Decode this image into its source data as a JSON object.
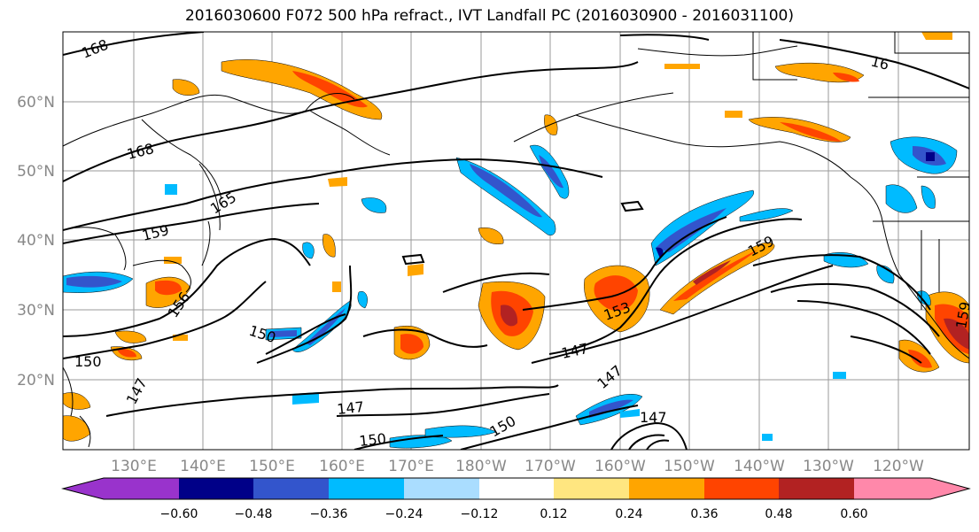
{
  "title": "2016030600 F072 500 hPa refract., IVT Landfall PC (2016030900 - 2016031100)",
  "map": {
    "lat_labels": [
      "60°N",
      "50°N",
      "40°N",
      "30°N",
      "20°N"
    ],
    "lon_labels": [
      "130°E",
      "140°E",
      "150°E",
      "160°E",
      "170°E",
      "180°W",
      "170°W",
      "160°W",
      "150°W",
      "140°W",
      "130°W",
      "120°W"
    ],
    "contour_labels": [
      "168",
      "168",
      "165",
      "159",
      "156",
      "150",
      "150",
      "147",
      "147",
      "150",
      "150",
      "147",
      "153",
      "147",
      "147",
      "159",
      "16",
      "159"
    ]
  },
  "colorbar": {
    "tick_labels": [
      "−0.60",
      "−0.48",
      "−0.36",
      "−0.24",
      "−0.12",
      "0.12",
      "0.24",
      "0.36",
      "0.48",
      "0.60"
    ],
    "colors": [
      "#9933cc",
      "#000088",
      "#3355cc",
      "#00bbff",
      "#aaddff",
      "#ffffff",
      "#ffe680",
      "#ffa500",
      "#ff4400",
      "#b22222",
      "#ff88aa"
    ]
  }
}
